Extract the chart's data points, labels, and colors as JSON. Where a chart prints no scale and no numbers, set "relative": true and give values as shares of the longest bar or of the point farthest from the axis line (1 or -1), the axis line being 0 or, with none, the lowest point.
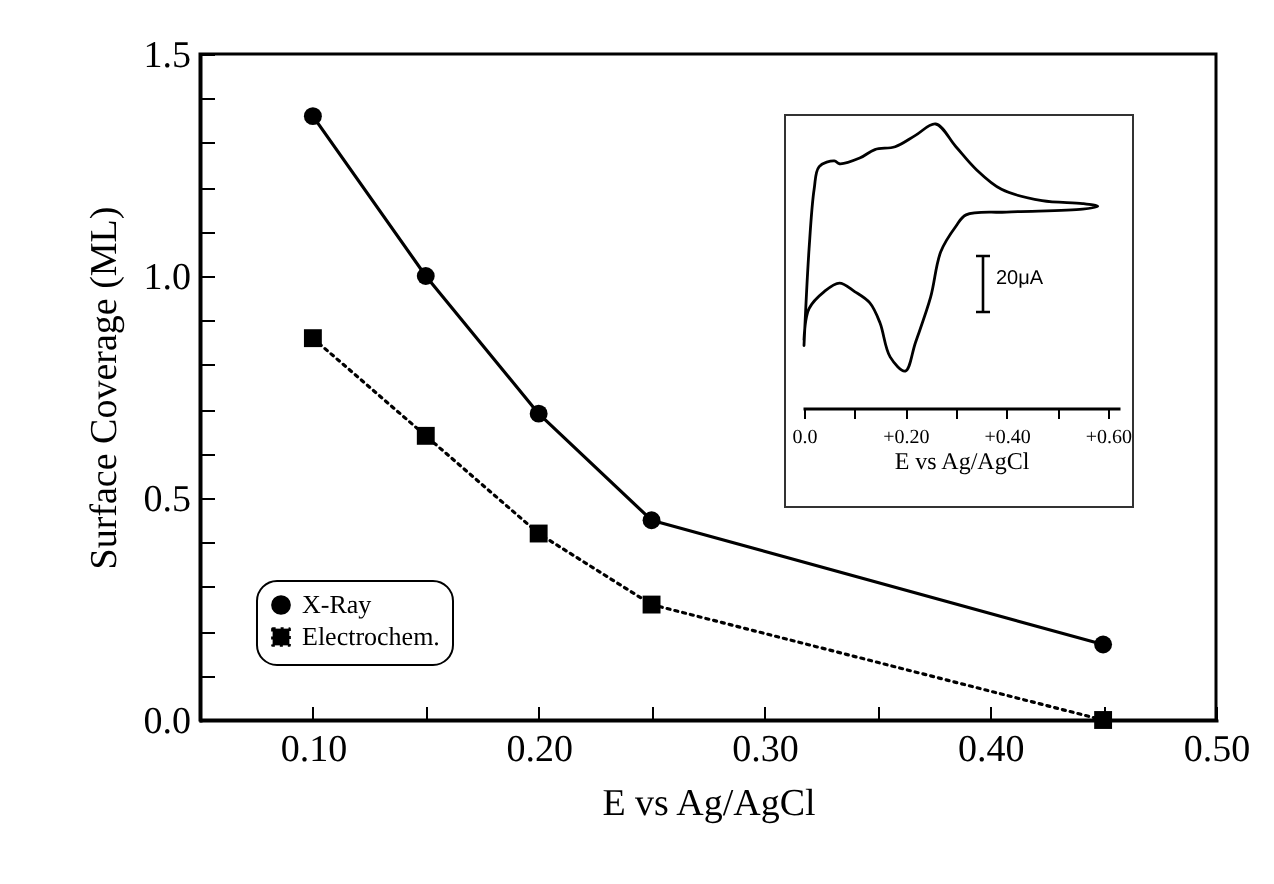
{
  "chart_data": [
    {
      "type": "line",
      "xlabel": "E vs Ag/AgCl",
      "ylabel": "Surface Coverage (ML)",
      "x": [
        0.1,
        0.15,
        0.2,
        0.25,
        0.45
      ],
      "series": [
        {
          "name": "X-Ray",
          "color": "#000000",
          "marker": "circle",
          "line_style": "solid",
          "values": [
            1.36,
            1.0,
            0.69,
            0.45,
            0.17
          ]
        },
        {
          "name": "Electrochem.",
          "color": "#000000",
          "marker": "square",
          "line_style": "dotted",
          "values": [
            0.86,
            0.64,
            0.42,
            0.26,
            0.0
          ]
        }
      ],
      "xlim": [
        0.05,
        0.5
      ],
      "xticks": [
        {
          "value": 0.1,
          "label": "0.10"
        },
        {
          "value": 0.15,
          "label": null
        },
        {
          "value": 0.2,
          "label": "0.20"
        },
        {
          "value": 0.25,
          "label": null
        },
        {
          "value": 0.3,
          "label": "0.30"
        },
        {
          "value": 0.35,
          "label": null
        },
        {
          "value": 0.4,
          "label": "0.40"
        },
        {
          "value": 0.45,
          "label": null
        },
        {
          "value": 0.5,
          "label": "0.50"
        }
      ],
      "ylim": [
        0,
        1.5
      ],
      "yticks": [
        {
          "value": 0,
          "label": "0.0"
        },
        {
          "value": 0.1,
          "label": null
        },
        {
          "value": 0.2,
          "label": null
        },
        {
          "value": 0.3,
          "label": null
        },
        {
          "value": 0.4,
          "label": null
        },
        {
          "value": 0.5,
          "label": "0.5"
        },
        {
          "value": 0.6,
          "label": null
        },
        {
          "value": 0.7,
          "label": null
        },
        {
          "value": 0.8,
          "label": null
        },
        {
          "value": 0.9,
          "label": null
        },
        {
          "value": 1.0,
          "label": "1.0"
        },
        {
          "value": 1.1,
          "label": null
        },
        {
          "value": 1.2,
          "label": null
        },
        {
          "value": 1.3,
          "label": null
        },
        {
          "value": 1.4,
          "label": null
        },
        {
          "value": 1.5,
          "label": "1.5"
        }
      ],
      "legend": "bottom left",
      "grid": false
    },
    {
      "type": "line",
      "xlabel": "E vs Ag/AgCl",
      "relative": true,
      "annotations": [
        "20μA"
      ],
      "x": [
        0.0,
        0.01,
        0.02,
        0.03,
        0.06,
        0.07,
        0.11,
        0.14,
        0.18,
        0.22,
        0.26,
        0.3,
        0.34,
        0.39,
        0.47,
        0.55,
        0.58,
        0.55,
        0.4,
        0.32,
        0.3,
        0.27,
        0.25,
        0.22,
        0.2,
        0.17,
        0.15,
        0.13,
        0.1,
        0.07,
        0.04,
        0.01,
        0.0
      ],
      "series": [
        {
          "color": "#000000",
          "values": [
            0.22,
            0.56,
            0.77,
            0.85,
            0.87,
            0.86,
            0.88,
            0.91,
            0.92,
            0.96,
            1.0,
            0.92,
            0.84,
            0.77,
            0.73,
            0.72,
            0.71,
            0.7,
            0.69,
            0.68,
            0.64,
            0.55,
            0.39,
            0.23,
            0.13,
            0.18,
            0.3,
            0.37,
            0.41,
            0.44,
            0.41,
            0.35,
            0.24
          ]
        }
      ],
      "xlim": [
        0,
        0.62
      ],
      "xticks": [
        {
          "value": 0,
          "label": "0.0"
        },
        {
          "value": 0.1,
          "label": null
        },
        {
          "value": 0.2,
          "label": "+0.20"
        },
        {
          "value": 0.3,
          "label": null
        },
        {
          "value": 0.4,
          "label": "+0.40"
        },
        {
          "value": 0.5,
          "label": null
        },
        {
          "value": 0.6,
          "label": "+0.60"
        }
      ],
      "grid": false
    }
  ]
}
